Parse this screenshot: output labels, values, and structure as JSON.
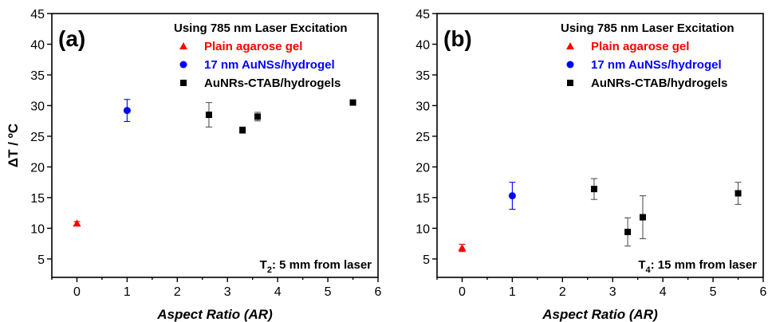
{
  "chart_data": [
    {
      "type": "scatter",
      "panel_label": "(a)",
      "legend_title": "Using 785 nm Laser Excitation",
      "legend_placement": "top-right",
      "xlabel": "Aspect Ratio (AR)",
      "ylabel": "ΔT / ºC",
      "xlim": [
        -0.5,
        6
      ],
      "ylim": [
        2,
        45
      ],
      "xticks": [
        0,
        1,
        2,
        3,
        4,
        5,
        6
      ],
      "yticks": [
        5,
        10,
        15,
        20,
        25,
        30,
        35,
        40,
        45
      ],
      "annotation_prefix": "T",
      "annotation_sub": "2",
      "annotation_suffix": ": 5 mm from laser",
      "grid": false,
      "series": [
        {
          "name": "Plain agarose gel",
          "color": "#ff0000",
          "marker": "triangle",
          "points": [
            {
              "x": 0,
              "y": 10.8,
              "err": 0.3
            }
          ]
        },
        {
          "name": "17 nm AuNSs/hydrogel",
          "color": "#0000ff",
          "marker": "circle",
          "points": [
            {
              "x": 1,
              "y": 29.2,
              "err": 1.8
            }
          ]
        },
        {
          "name": "AuNRs-CTAB/hydrogels",
          "color": "#000000",
          "marker": "square",
          "points": [
            {
              "x": 2.63,
              "y": 28.5,
              "err": 2.0
            },
            {
              "x": 3.3,
              "y": 26.0,
              "err": 0.5
            },
            {
              "x": 3.6,
              "y": 28.2,
              "err": 0.7
            },
            {
              "x": 5.5,
              "y": 30.5,
              "err": 0.2
            }
          ]
        }
      ]
    },
    {
      "type": "scatter",
      "panel_label": "(b)",
      "legend_title": "Using 785 nm Laser Excitation",
      "legend_placement": "top-right",
      "xlabel": "Aspect Ratio (AR)",
      "ylabel": "",
      "xlim": [
        -0.5,
        6
      ],
      "ylim": [
        2,
        45
      ],
      "xticks": [
        0,
        1,
        2,
        3,
        4,
        5,
        6
      ],
      "yticks": [
        5,
        10,
        15,
        20,
        25,
        30,
        35,
        40,
        45
      ],
      "annotation_prefix": "T",
      "annotation_sub": "4",
      "annotation_suffix": ": 15 mm from laser",
      "grid": false,
      "series": [
        {
          "name": "Plain agarose gel",
          "color": "#ff0000",
          "marker": "triangle",
          "points": [
            {
              "x": 0,
              "y": 6.8,
              "err": 0.6
            }
          ]
        },
        {
          "name": "17 nm AuNSs/hydrogel",
          "color": "#0000ff",
          "marker": "circle",
          "points": [
            {
              "x": 1,
              "y": 15.3,
              "err": 2.2
            }
          ]
        },
        {
          "name": "AuNRs-CTAB/hydrogels",
          "color": "#000000",
          "marker": "square",
          "points": [
            {
              "x": 2.63,
              "y": 16.4,
              "err": 1.7
            },
            {
              "x": 3.3,
              "y": 9.4,
              "err": 2.3
            },
            {
              "x": 3.6,
              "y": 11.8,
              "err": 3.5
            },
            {
              "x": 5.5,
              "y": 15.7,
              "err": 1.8
            }
          ]
        }
      ]
    }
  ]
}
